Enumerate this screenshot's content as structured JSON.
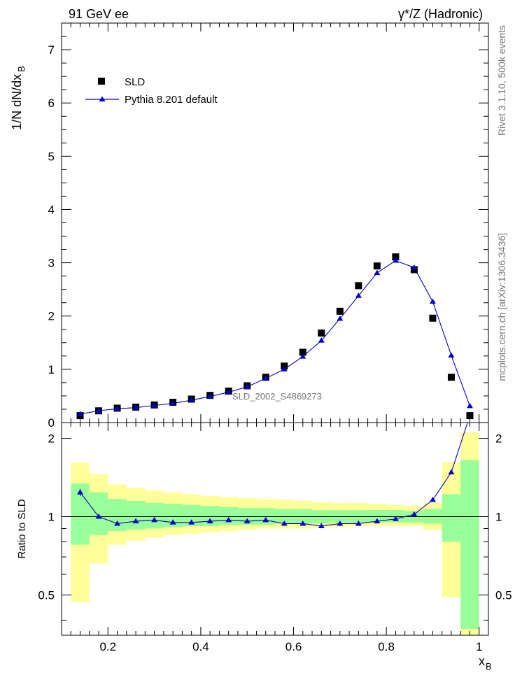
{
  "header": {
    "left_title": "91 GeV ee",
    "right_title": "γ*/Z (Hadronic)"
  },
  "side_labels": {
    "rivet": "Rivet 3.1.10,  500k events",
    "mcplots": "mcplots.cern.ch [arXiv:1306.3436]"
  },
  "watermark": "SLD_2002_S4869273",
  "chart_data": [
    {
      "name": "main",
      "type": "scatter",
      "xlabel": "x",
      "xlabel_sub": "B",
      "ylabel": "1/N dN/dx",
      "ylabel_sub": "B",
      "xlim": [
        0.1,
        1.02
      ],
      "ylim": [
        0,
        7.5
      ],
      "y_ticks": [
        "0",
        "1",
        "2",
        "3",
        "4",
        "5",
        "6",
        "7"
      ],
      "legend": {
        "placement": "top-left",
        "entries": [
          "SLD",
          "Pythia 8.201 default"
        ]
      },
      "x": [
        0.14,
        0.18,
        0.22,
        0.26,
        0.3,
        0.34,
        0.38,
        0.42,
        0.46,
        0.5,
        0.54,
        0.58,
        0.62,
        0.66,
        0.7,
        0.74,
        0.78,
        0.82,
        0.86,
        0.9,
        0.94,
        0.98
      ],
      "series": [
        {
          "name": "SLD",
          "marker": "square",
          "color": "#000000",
          "values": [
            0.13,
            0.22,
            0.27,
            0.29,
            0.33,
            0.38,
            0.44,
            0.51,
            0.59,
            0.69,
            0.85,
            1.06,
            1.32,
            1.68,
            2.09,
            2.57,
            2.94,
            3.11,
            2.87,
            1.96,
            0.85,
            0.13
          ]
        },
        {
          "name": "Pythia 8.201 default",
          "marker": "triangle",
          "color": "#0000cc",
          "values": [
            0.16,
            0.22,
            0.26,
            0.28,
            0.32,
            0.36,
            0.42,
            0.49,
            0.57,
            0.67,
            0.83,
            1.0,
            1.24,
            1.54,
            1.95,
            2.38,
            2.81,
            3.04,
            2.91,
            2.27,
            1.26,
            0.31
          ]
        }
      ]
    },
    {
      "name": "ratio",
      "type": "line",
      "xlabel": "x",
      "xlabel_sub": "B",
      "ylabel": "Ratio to SLD",
      "ylim": [
        0.35,
        2.3
      ],
      "y_ticks": [
        "0.5",
        "1",
        "2"
      ],
      "y_tick_values": [
        0.5,
        1,
        2
      ],
      "x_ticks": [
        "0.2",
        "0.4",
        "0.6",
        "0.8",
        "1"
      ],
      "x_tick_values": [
        0.2,
        0.4,
        0.6,
        0.8,
        1.0
      ],
      "bin_edges": [
        0.12,
        0.16,
        0.2,
        0.24,
        0.28,
        0.32,
        0.36,
        0.4,
        0.44,
        0.48,
        0.52,
        0.56,
        0.6,
        0.64,
        0.68,
        0.72,
        0.76,
        0.8,
        0.84,
        0.88,
        0.92,
        0.96,
        1.0
      ],
      "band_green": [
        [
          0.78,
          1.34
        ],
        [
          0.85,
          1.24
        ],
        [
          0.88,
          1.17
        ],
        [
          0.89,
          1.15
        ],
        [
          0.9,
          1.13
        ],
        [
          0.91,
          1.12
        ],
        [
          0.92,
          1.11
        ],
        [
          0.92,
          1.1
        ],
        [
          0.93,
          1.09
        ],
        [
          0.93,
          1.08
        ],
        [
          0.93,
          1.08
        ],
        [
          0.94,
          1.07
        ],
        [
          0.94,
          1.07
        ],
        [
          0.94,
          1.06
        ],
        [
          0.95,
          1.06
        ],
        [
          0.95,
          1.06
        ],
        [
          0.95,
          1.06
        ],
        [
          0.95,
          1.06
        ],
        [
          0.95,
          1.05
        ],
        [
          0.94,
          1.07
        ],
        [
          0.8,
          1.22
        ],
        [
          0.37,
          1.65
        ]
      ],
      "band_yellow": [
        [
          0.47,
          1.61
        ],
        [
          0.66,
          1.46
        ],
        [
          0.78,
          1.33
        ],
        [
          0.81,
          1.29
        ],
        [
          0.83,
          1.26
        ],
        [
          0.85,
          1.24
        ],
        [
          0.86,
          1.22
        ],
        [
          0.87,
          1.2
        ],
        [
          0.88,
          1.19
        ],
        [
          0.89,
          1.18
        ],
        [
          0.9,
          1.17
        ],
        [
          0.9,
          1.16
        ],
        [
          0.9,
          1.15
        ],
        [
          0.91,
          1.14
        ],
        [
          0.91,
          1.13
        ],
        [
          0.92,
          1.13
        ],
        [
          0.92,
          1.12
        ],
        [
          0.92,
          1.11
        ],
        [
          0.92,
          1.1
        ],
        [
          0.89,
          1.13
        ],
        [
          0.49,
          1.62
        ],
        [
          0.31,
          2.11
        ]
      ],
      "x": [
        0.14,
        0.18,
        0.22,
        0.26,
        0.3,
        0.34,
        0.38,
        0.42,
        0.46,
        0.5,
        0.54,
        0.58,
        0.62,
        0.66,
        0.7,
        0.74,
        0.78,
        0.82,
        0.86,
        0.9,
        0.94,
        0.98
      ],
      "series": [
        {
          "name": "Pythia 8.201 default / SLD",
          "marker": "triangle",
          "color": "#0000cc",
          "values": [
            1.24,
            1.0,
            0.94,
            0.96,
            0.97,
            0.95,
            0.95,
            0.96,
            0.97,
            0.96,
            0.97,
            0.94,
            0.94,
            0.92,
            0.94,
            0.94,
            0.96,
            0.98,
            1.02,
            1.16,
            1.48,
            2.45
          ]
        }
      ]
    }
  ]
}
